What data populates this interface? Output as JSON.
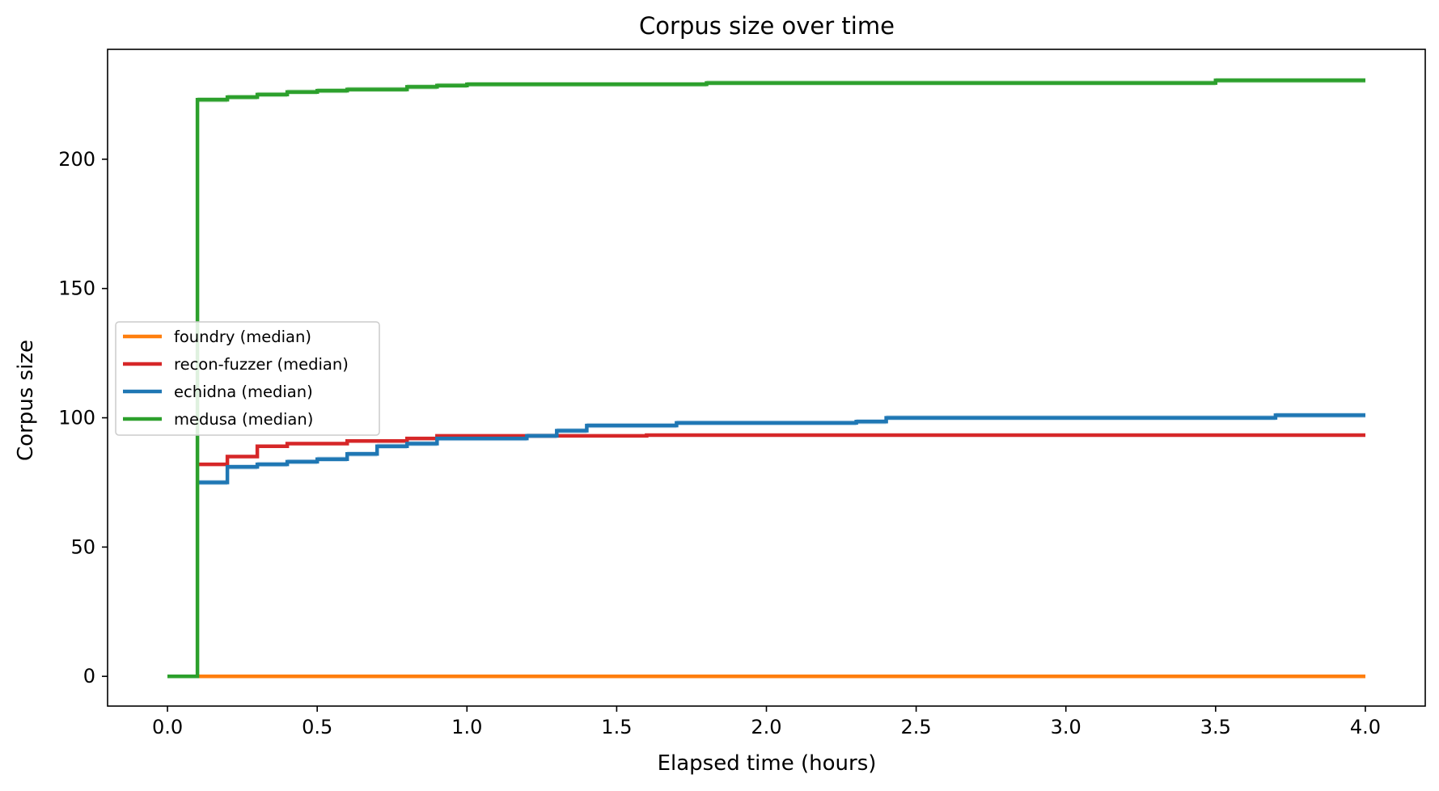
{
  "chart_data": {
    "type": "line",
    "title": "Corpus size over time",
    "xlabel": "Elapsed time (hours)",
    "ylabel": "Corpus size",
    "xlim": [
      -0.2,
      4.2
    ],
    "ylim": [
      -11.5,
      242.5
    ],
    "xticks": [
      0.0,
      0.5,
      1.0,
      1.5,
      2.0,
      2.5,
      3.0,
      3.5,
      4.0
    ],
    "xtick_labels": [
      "0.0",
      "0.5",
      "1.0",
      "1.5",
      "2.0",
      "2.5",
      "3.0",
      "3.5",
      "4.0"
    ],
    "yticks": [
      0,
      50,
      100,
      150,
      200
    ],
    "ytick_labels": [
      "0",
      "50",
      "100",
      "150",
      "200"
    ],
    "grid": false,
    "legend_position": "center-left",
    "step": "post",
    "series": [
      {
        "name": "foundry (median)",
        "color": "#ff7f0e",
        "x": [
          0.0,
          4.0
        ],
        "y": [
          0,
          0
        ]
      },
      {
        "name": "recon-fuzzer (median)",
        "color": "#d62728",
        "x": [
          0.1,
          0.2,
          0.3,
          0.4,
          0.6,
          0.8,
          0.9,
          1.6,
          4.0
        ],
        "y": [
          82,
          85,
          89,
          90,
          91,
          92,
          93,
          93.3,
          93.3
        ]
      },
      {
        "name": "echidna (median)",
        "color": "#1f77b4",
        "x": [
          0.1,
          0.2,
          0.3,
          0.4,
          0.5,
          0.6,
          0.7,
          0.8,
          0.9,
          1.2,
          1.3,
          1.4,
          1.7,
          2.3,
          2.4,
          3.6,
          3.7,
          4.0
        ],
        "y": [
          75,
          81,
          82,
          83,
          84,
          86,
          89,
          90,
          92,
          93,
          95,
          97,
          98,
          98.5,
          100,
          100,
          101,
          101
        ],
        "band_upper": [
          76,
          82,
          83,
          84,
          85,
          87,
          90,
          91,
          93,
          94,
          96,
          98,
          99,
          99.5,
          101,
          101,
          102,
          102
        ],
        "band_lower": [
          74,
          80,
          81,
          82,
          83,
          85,
          88,
          89,
          91,
          92,
          94,
          96,
          97,
          97.5,
          99,
          99,
          100,
          100
        ]
      },
      {
        "name": "medusa (median)",
        "color": "#2ca02c",
        "x": [
          0.0,
          0.1,
          0.2,
          0.3,
          0.4,
          0.5,
          0.6,
          0.8,
          0.9,
          1.0,
          1.8,
          3.4,
          3.5,
          4.0
        ],
        "y": [
          0,
          223,
          224,
          225,
          226,
          226.5,
          227,
          228,
          228.5,
          229,
          229.5,
          229.5,
          230.5,
          230.5
        ],
        "band_upper": [
          0,
          224,
          225,
          226,
          227,
          227.5,
          228,
          229,
          229.5,
          230,
          230.5,
          230.5,
          231.5,
          231.5
        ],
        "band_lower": [
          0,
          222,
          223,
          224,
          225,
          225.5,
          226,
          227,
          227.5,
          228,
          228.5,
          228.5,
          229.5,
          229.5
        ]
      }
    ]
  }
}
